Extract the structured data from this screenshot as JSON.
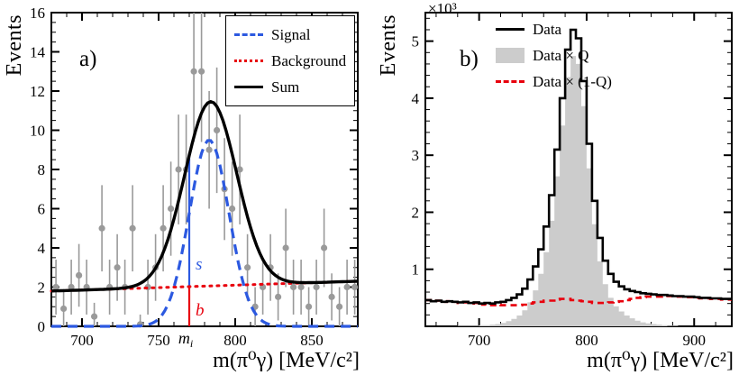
{
  "chart_data": [
    {
      "type": "composite",
      "tag": "a)",
      "xlabel": "m(π⁰γ) [MeV/c²]",
      "ylabel": "Events",
      "xlim": [
        680,
        880
      ],
      "ylim": [
        0,
        16
      ],
      "xticks": [
        700,
        750,
        800,
        850
      ],
      "yticks": [
        0,
        2,
        4,
        6,
        8,
        10,
        12,
        14,
        16
      ],
      "xminor_step": 10,
      "yminor_step": 0.5,
      "grid": false,
      "legend_position": "top-right",
      "points": {
        "name": "data points",
        "color": "#9a9a9a",
        "x": [
          683,
          688,
          693,
          698,
          703,
          708,
          713,
          718,
          723,
          728,
          733,
          738,
          743,
          748,
          753,
          758,
          763,
          768,
          773,
          778,
          783,
          788,
          793,
          798,
          803,
          808,
          813,
          818,
          823,
          828,
          833,
          838,
          843,
          848,
          853,
          858,
          863,
          868,
          873,
          878
        ],
        "y": [
          2,
          0.9,
          2,
          2.6,
          2,
          0.5,
          5,
          2,
          3,
          2,
          5,
          0.1,
          2,
          3,
          5,
          6,
          8,
          8,
          13,
          13,
          9,
          10,
          7,
          6,
          8,
          3,
          1,
          2,
          3,
          1.5,
          4,
          2,
          2,
          1,
          2,
          4,
          1.5,
          1,
          2,
          2
        ],
        "yerr": [
          1.4,
          1.0,
          1.4,
          1.6,
          1.4,
          0.7,
          2.2,
          1.4,
          1.7,
          1.4,
          2.2,
          0.5,
          1.4,
          1.7,
          2.2,
          2.4,
          2.8,
          2.8,
          3.6,
          3.6,
          3.0,
          3.2,
          2.6,
          2.4,
          2.8,
          1.7,
          1.0,
          1.4,
          1.7,
          1.2,
          2.0,
          1.4,
          1.4,
          1.0,
          1.4,
          2.0,
          1.2,
          1.0,
          1.4,
          1.4
        ]
      },
      "signal": {
        "label": "Signal",
        "style": "dashed",
        "color": "#2c59e0",
        "shape": "gaussian",
        "amplitude": 9.5,
        "mean": 783,
        "sigma": 13
      },
      "background": {
        "label": "Background",
        "style": "dotted",
        "color": "#e8000d",
        "x": [
          680,
          880
        ],
        "y": [
          1.8,
          2.3
        ]
      },
      "sum": {
        "label": "Sum",
        "style": "solid",
        "color": "#000000",
        "shape": "gaussian_plus_background",
        "amplitude": 9.4,
        "mean": 784,
        "sigma": 17
      },
      "marker": {
        "x": 770,
        "s_label": "s",
        "b_label": "b",
        "axis_label_main": "m",
        "axis_label_sub": "i",
        "s_color": "#2c59e0",
        "b_color": "#e8000d"
      }
    },
    {
      "type": "histogram",
      "tag": "b)",
      "xlabel": "m(π⁰γ) [MeV/c²]",
      "ylabel": "Events",
      "y_exponent": "×10³",
      "xlim": [
        650,
        935
      ],
      "ylim": [
        0,
        5.5
      ],
      "xticks": [
        700,
        800,
        900
      ],
      "yticks": [
        1,
        2,
        3,
        4,
        5
      ],
      "xminor_step": 20,
      "yminor_step": 0.2,
      "grid": false,
      "legend_position": "top-right",
      "bin_start": 650,
      "bin_width": 5,
      "series": [
        {
          "name": "Data",
          "style": "step-solid",
          "color": "#000000",
          "values": [
            0.46,
            0.44,
            0.45,
            0.43,
            0.44,
            0.43,
            0.42,
            0.43,
            0.41,
            0.42,
            0.4,
            0.41,
            0.4,
            0.42,
            0.43,
            0.46,
            0.5,
            0.56,
            0.66,
            0.82,
            1.05,
            1.35,
            1.75,
            2.3,
            3.1,
            4.0,
            4.85,
            5.2,
            5.05,
            4.3,
            3.2,
            2.2,
            1.55,
            1.15,
            0.92,
            0.78,
            0.7,
            0.65,
            0.62,
            0.6,
            0.58,
            0.57,
            0.56,
            0.55,
            0.55,
            0.54,
            0.53,
            0.53,
            0.52,
            0.52,
            0.51,
            0.5,
            0.5,
            0.49,
            0.49,
            0.48,
            0.48
          ]
        },
        {
          "name": "Data × Q",
          "style": "filled",
          "color": "#cccccc",
          "values": [
            0,
            0,
            0,
            0,
            0,
            0,
            0.01,
            0.01,
            0.01,
            0.01,
            0.02,
            0.02,
            0.03,
            0.04,
            0.06,
            0.09,
            0.13,
            0.19,
            0.28,
            0.42,
            0.63,
            0.92,
            1.3,
            1.85,
            2.63,
            3.52,
            4.37,
            4.74,
            4.6,
            3.86,
            2.77,
            1.79,
            1.14,
            0.74,
            0.5,
            0.35,
            0.26,
            0.19,
            0.14,
            0.1,
            0.07,
            0.05,
            0.04,
            0.03,
            0.02,
            0.01,
            0.01,
            0,
            0,
            0,
            0,
            0,
            0,
            0,
            0,
            0,
            0
          ]
        },
        {
          "name": "Data × (1-Q)",
          "style": "step-dashed",
          "color": "#e8000d",
          "values": [
            0.46,
            0.44,
            0.45,
            0.43,
            0.44,
            0.43,
            0.41,
            0.42,
            0.4,
            0.41,
            0.38,
            0.39,
            0.37,
            0.38,
            0.37,
            0.37,
            0.37,
            0.37,
            0.38,
            0.4,
            0.42,
            0.43,
            0.45,
            0.45,
            0.47,
            0.48,
            0.48,
            0.46,
            0.45,
            0.44,
            0.43,
            0.41,
            0.41,
            0.41,
            0.42,
            0.43,
            0.44,
            0.46,
            0.48,
            0.5,
            0.51,
            0.52,
            0.52,
            0.52,
            0.53,
            0.53,
            0.52,
            0.52,
            0.51,
            0.51,
            0.5,
            0.49,
            0.49,
            0.48,
            0.48,
            0.47,
            0.47
          ]
        }
      ]
    }
  ]
}
